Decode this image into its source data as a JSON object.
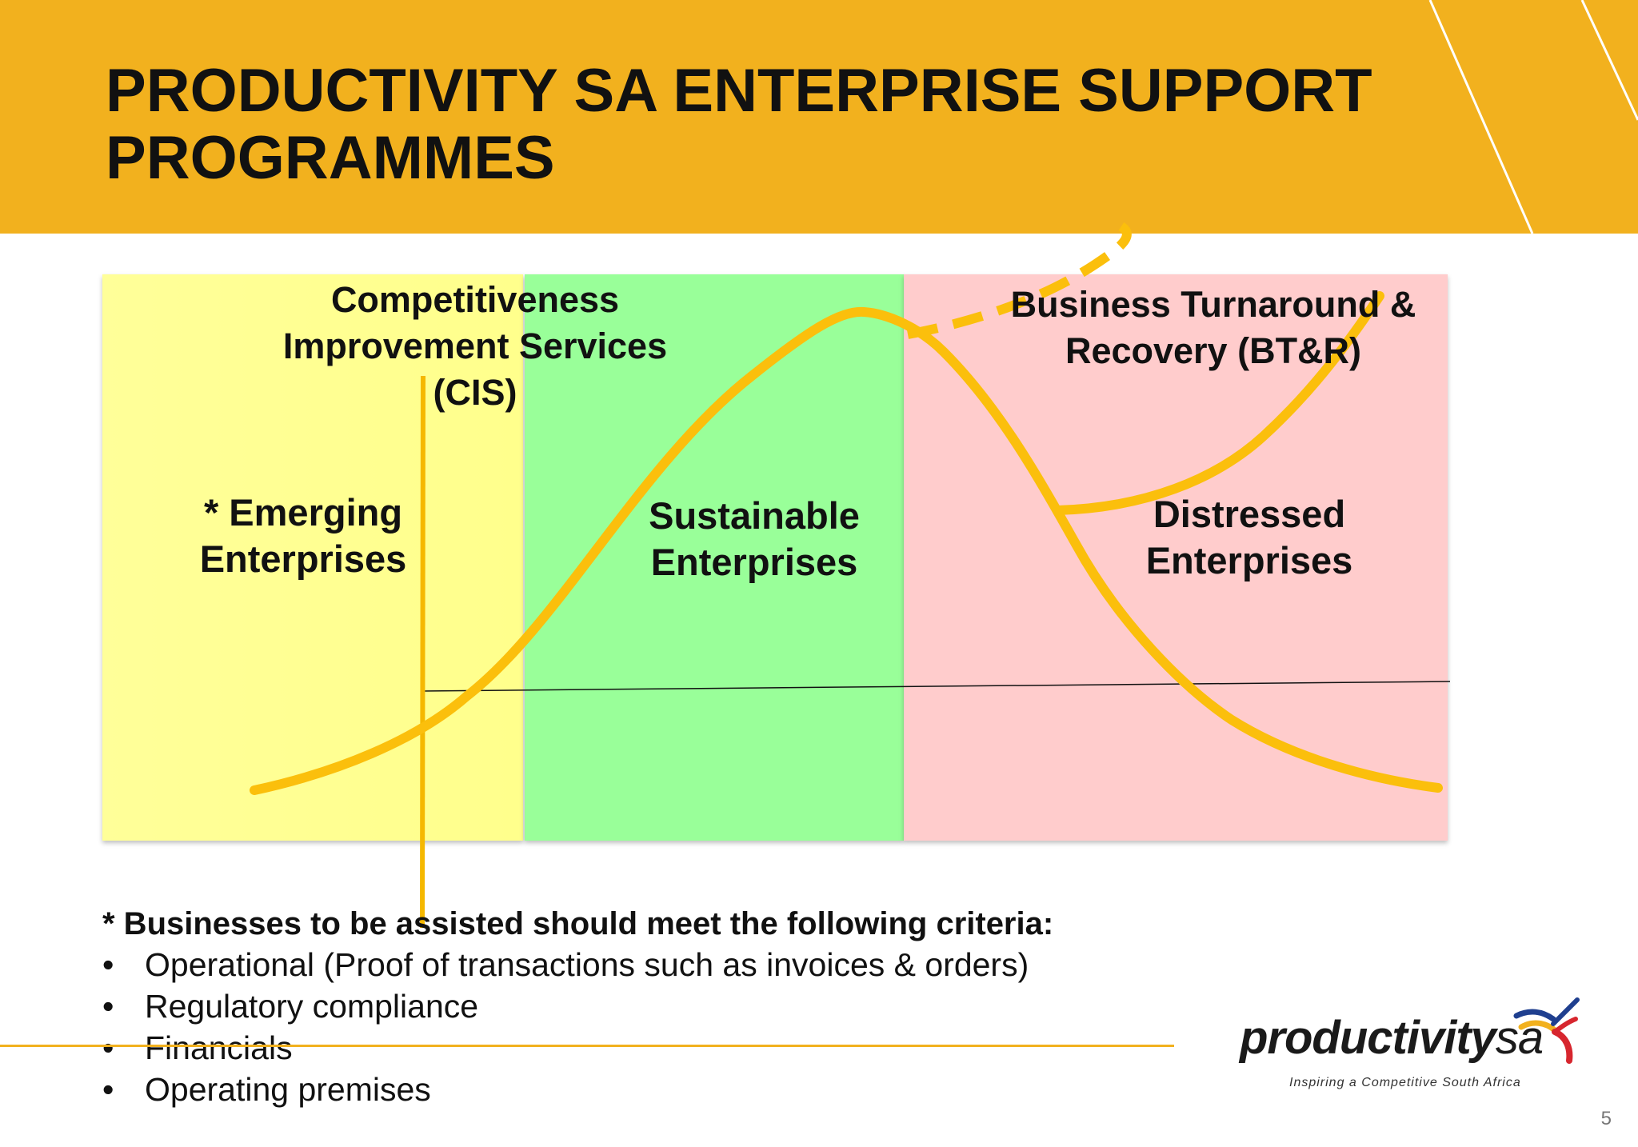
{
  "slide": {
    "title": "PRODUCTIVITY SA ENTERPRISE SUPPORT PROGRAMMES",
    "page_number": "5"
  },
  "colors": {
    "banner": "#f2b11e",
    "curve": "#fbbf0c",
    "zone_emerging": "#ffff99",
    "zone_sustainable": "#99ff99",
    "zone_distressed": "#ffcccc"
  },
  "diagram": {
    "cis_label": "Competitiveness Improvement Services (CIS)",
    "btr_label": "Business Turnaround & Recovery (BT&R)",
    "zones": [
      {
        "label": "* Emerging Enterprises"
      },
      {
        "label": "Sustainable Enterprises"
      },
      {
        "label": "Distressed Enterprises"
      }
    ]
  },
  "criteria": {
    "heading": "* Businesses to be assisted should meet the following criteria:",
    "bullet": "•",
    "items": [
      "Operational (Proof of transactions such as invoices & orders)",
      "Regulatory compliance",
      "Financials",
      "Operating premises"
    ]
  },
  "logo": {
    "wordmark": "productivity",
    "wordmark_suffix": "sa",
    "tagline": "Inspiring a Competitive South Africa"
  }
}
